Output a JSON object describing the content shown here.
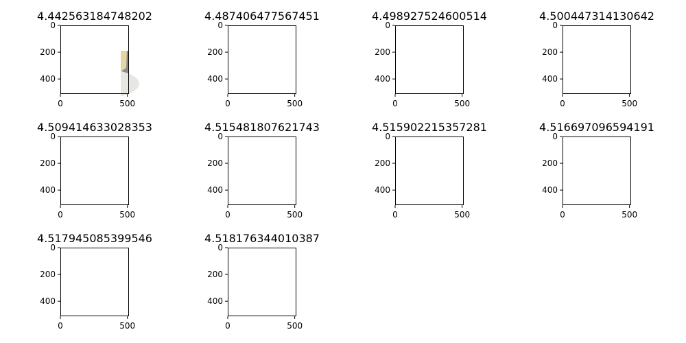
{
  "chart_data": {
    "type": "image-grid",
    "axes": {
      "x_ticks": [
        0,
        500
      ],
      "y_ticks": [
        0,
        200,
        400
      ],
      "x_range": [
        0,
        512
      ],
      "y_range": [
        512,
        0
      ]
    },
    "panels": [
      {
        "title": "4.442563184748202",
        "image": "cheesecake-slice"
      },
      {
        "title": "4.487406477567451",
        "image": "steamed-dumplings"
      },
      {
        "title": "4.498927524600514",
        "image": "pho-soup"
      },
      {
        "title": "4.500447314130642",
        "image": "dessert-with-ice-cream"
      },
      {
        "title": "4.509414633028353",
        "image": "falafel-plate"
      },
      {
        "title": "4.515481807621743",
        "image": "cup-of-soup"
      },
      {
        "title": "4.515902215357281",
        "image": "red-velvet-cake"
      },
      {
        "title": "4.516697096594191",
        "image": "onion-rings"
      },
      {
        "title": "4.517945085399546",
        "image": "bowl-of-soup"
      },
      {
        "title": "4.518176344010387",
        "image": "caesar-salad"
      }
    ]
  },
  "colors": {
    "cheesecake": [
      "#8a8a8a",
      "#c89a55",
      "#e8d6a8",
      "#3a3550"
    ],
    "dumplings": [
      "#6a3a1c",
      "#d8ccb4",
      "#efe6d4"
    ],
    "pho": [
      "#1c1812",
      "#7a5a38",
      "#c8a690",
      "#2f6a2a"
    ],
    "dessert": [
      "#e8e8e0",
      "#5a4a2a",
      "#2a2410",
      "#f0f0e6"
    ],
    "falafel": [
      "#c0b0a0",
      "#4a2818",
      "#6a3420",
      "#3a6a2a"
    ],
    "cup_soup": [
      "#2a2a30",
      "#f0ece6",
      "#a89078",
      "#c0bcc0"
    ],
    "velvet": [
      "#c8c8c4",
      "#4a1c1a",
      "#e8d8d0"
    ],
    "onion_rings": [
      "#e8e2dc",
      "#c87020",
      "#e8a040"
    ],
    "bowl_soup": [
      "#2a1c14",
      "#f4f2ee",
      "#c89020"
    ],
    "salad": [
      "#2a2a2a",
      "#d8d8d0",
      "#5a6a3a",
      "#c8c8b8"
    ]
  }
}
